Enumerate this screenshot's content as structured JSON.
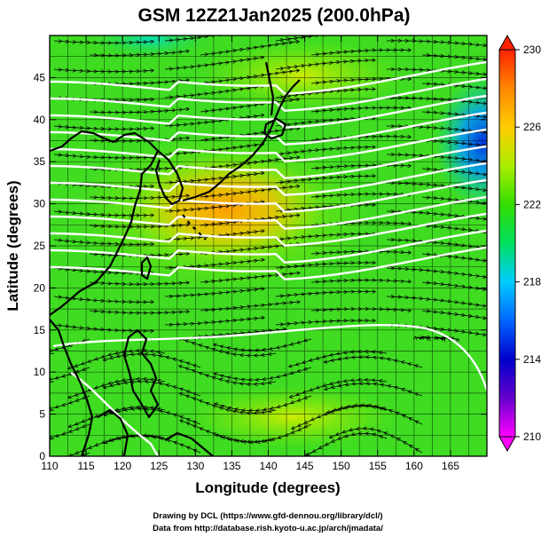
{
  "title": "GSM 12Z21Jan2025 (200.0hPa)",
  "xlabel": "Longitude (degrees)",
  "ylabel": "Latitude  (degrees)",
  "credits": [
    "Drawing by DCL (https://www.gfd-dennou.org/library/dcl/)",
    "Data from http://database.rish.kyoto-u.ac.jp/arch/jmadata/"
  ],
  "map": {
    "lon_range": [
      110,
      170
    ],
    "lat_range": [
      0,
      50
    ],
    "lon_ticks": [
      "110",
      "115",
      "120",
      "125",
      "130",
      "135",
      "140",
      "145",
      "150",
      "155",
      "160",
      "165"
    ],
    "lat_ticks": [
      "0",
      "5",
      "10",
      "15",
      "20",
      "25",
      "30",
      "35",
      "40",
      "45"
    ]
  },
  "colorbar": {
    "range": [
      210,
      230
    ],
    "ticks": [
      "230",
      "226",
      "222",
      "218",
      "214",
      "210"
    ],
    "colors": [
      "#ff00ff",
      "#0000cc",
      "#0066ff",
      "#00ccff",
      "#00ffcc",
      "#00dd33",
      "#66ee00",
      "#ccee00",
      "#ffcc00",
      "#ff8800",
      "#ff2200"
    ]
  }
}
